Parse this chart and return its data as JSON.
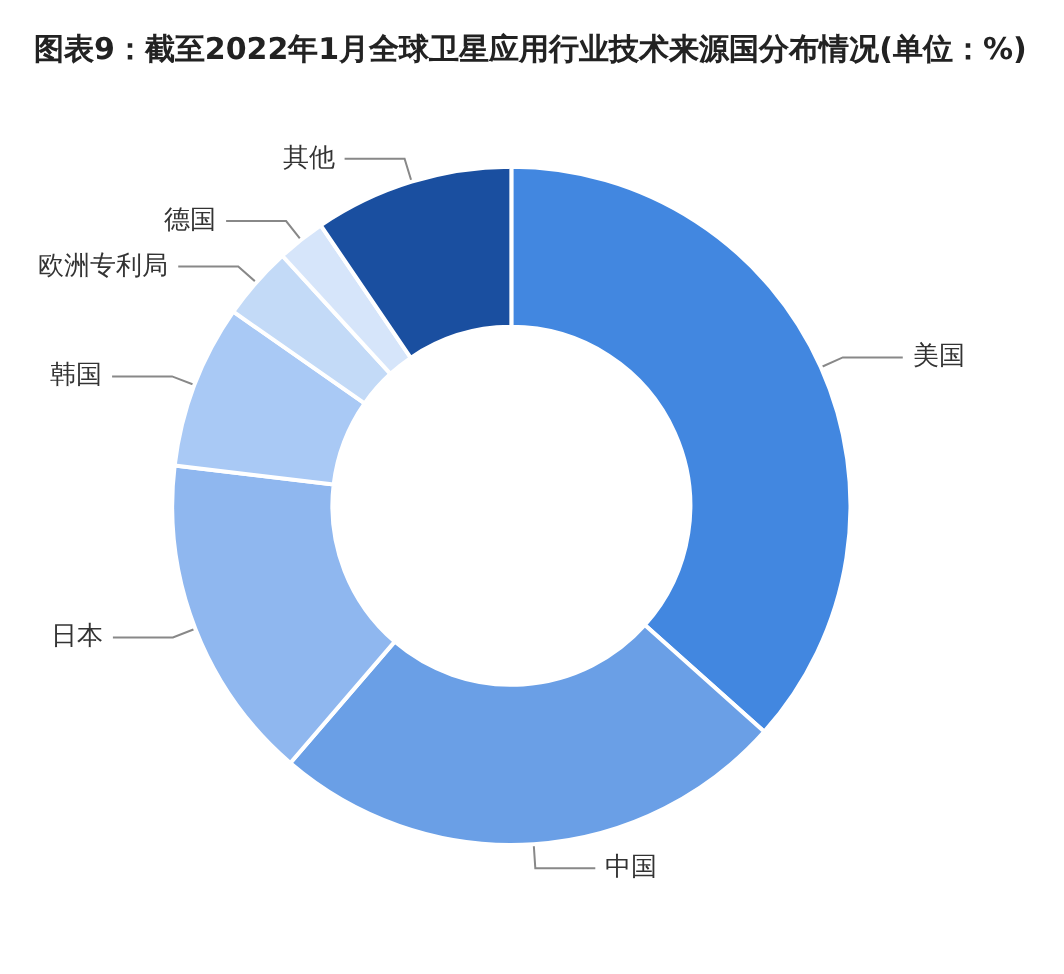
{
  "chart_data": {
    "type": "donut",
    "title": "图表9：截至2022年1月全球卫星应用行业技术来源国分布情况(单位：%)",
    "categories": [
      "美国",
      "中国",
      "日本",
      "韩国",
      "欧洲专利局",
      "德国",
      "其他"
    ],
    "values": [
      36.6,
      24.7,
      15.6,
      7.8,
      3.5,
      2.3,
      9.5
    ],
    "colors": [
      "#4287e0",
      "#6a9fe6",
      "#8fb7ef",
      "#a9c9f5",
      "#c3daf7",
      "#d6e5fa",
      "#1a4fa0"
    ],
    "legend": false
  }
}
